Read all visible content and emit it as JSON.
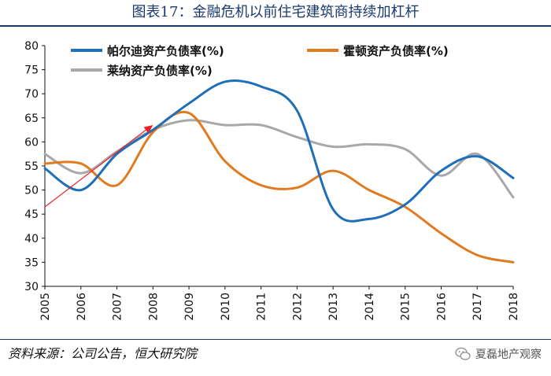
{
  "chart_data": {
    "type": "line",
    "title": "图表17：金融危机以前住宅建筑商持续加杠杆",
    "categories": [
      "2005",
      "2006",
      "2007",
      "2008",
      "2009",
      "2010",
      "2011",
      "2012",
      "2013",
      "2014",
      "2015",
      "2016",
      "2017",
      "2018"
    ],
    "series": [
      {
        "name": "帕尔迪资产负债率(%)",
        "color": "#1f6fb8",
        "values": [
          54.5,
          50.0,
          57.5,
          62.5,
          68.0,
          72.5,
          71.5,
          66.5,
          46.0,
          44.0,
          47.0,
          54.0,
          57.0,
          52.5
        ]
      },
      {
        "name": "霍顿资产负债率(%)",
        "color": "#e07b20",
        "values": [
          55.5,
          55.5,
          51.0,
          62.0,
          66.0,
          56.0,
          51.0,
          50.5,
          54.0,
          50.0,
          46.5,
          41.0,
          36.5,
          35.0
        ]
      },
      {
        "name": "莱纳资产负债率(%)",
        "color": "#a8a8a8",
        "values": [
          57.5,
          53.5,
          58.0,
          62.5,
          64.5,
          63.5,
          63.5,
          61.0,
          59.0,
          59.5,
          58.5,
          53.0,
          57.5,
          48.5
        ]
      }
    ],
    "ylim": [
      30,
      80
    ],
    "yticks": [
      30,
      35,
      40,
      45,
      50,
      55,
      60,
      65,
      70,
      75,
      80
    ],
    "annotation": {
      "type": "arrow",
      "color": "#e8242a",
      "from": [
        "2005",
        46.5
      ],
      "to": [
        "2008",
        63.5
      ]
    },
    "xlabel": "",
    "ylabel": "",
    "legend_position": "top"
  },
  "source_note": "资料来源：公司公告，恒大研究院",
  "brand": {
    "icon": "wechat-icon",
    "label": "夏磊地产观察"
  }
}
